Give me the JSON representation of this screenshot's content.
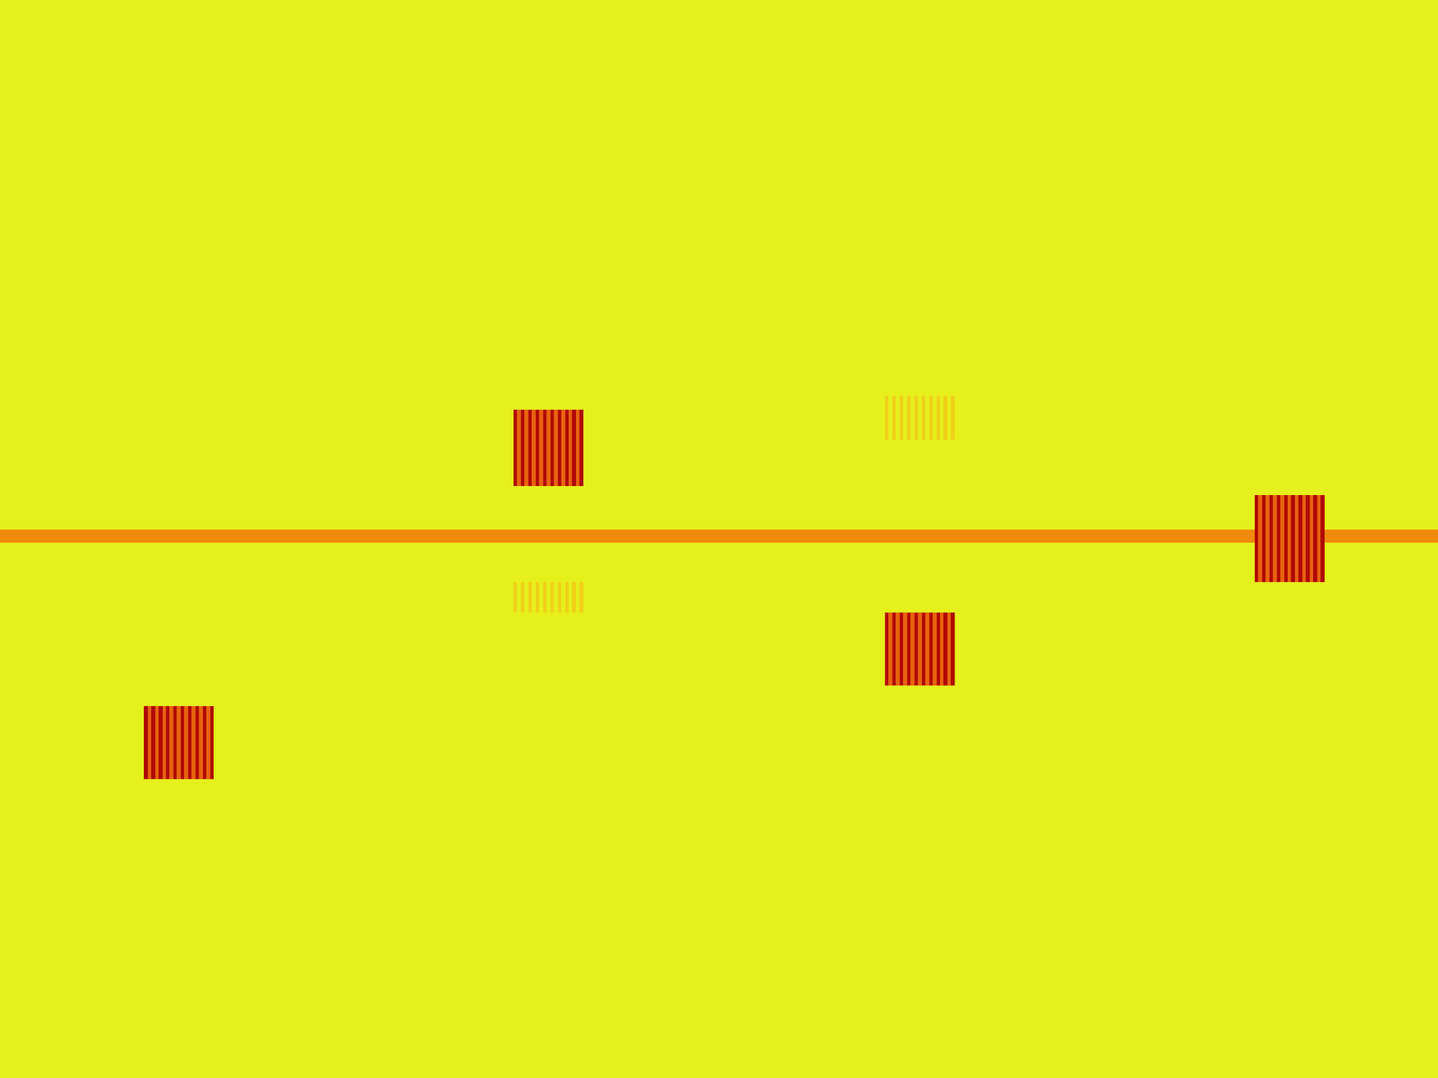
{
  "chart_data": {
    "type": "heatmap",
    "x": [
      0,
      157,
      161,
      165,
      169,
      173,
      177,
      181,
      185,
      189,
      193,
      197,
      201,
      205,
      209,
      213,
      217,
      221,
      225,
      229,
      233,
      560,
      564,
      568,
      572,
      576,
      580,
      584,
      588,
      592,
      596,
      600,
      604,
      608,
      612,
      616,
      620,
      624,
      628,
      632,
      636,
      965,
      969,
      973,
      977,
      981,
      985,
      989,
      993,
      997,
      1001,
      1005,
      1009,
      1013,
      1017,
      1021,
      1025,
      1029,
      1033,
      1037,
      1041,
      1368,
      1372,
      1376,
      1380,
      1384,
      1388,
      1392,
      1396,
      1400,
      1404,
      1408,
      1412,
      1416,
      1420,
      1424,
      1428,
      1432,
      1436,
      1440,
      1444,
      1568
    ],
    "y": [
      0,
      432,
      447,
      480,
      530,
      540,
      578,
      592,
      635,
      668,
      748,
      770,
      850,
      1176
    ],
    "cells": [
      [
        0,
        0,
        0,
        0,
        0,
        0,
        0,
        0,
        0,
        0,
        0,
        0,
        0,
        0,
        0,
        0,
        0,
        0,
        0,
        0,
        0,
        0,
        0,
        0,
        0,
        0,
        0,
        0,
        0,
        0,
        0,
        0,
        0,
        0,
        0,
        0,
        0,
        0,
        0,
        0,
        0,
        0,
        0,
        0,
        0,
        0,
        0,
        0,
        0,
        0,
        0,
        0,
        0,
        0,
        0,
        0,
        0,
        0,
        0,
        0,
        0,
        0,
        0,
        0,
        0,
        0,
        0,
        0,
        0,
        0,
        0,
        0,
        0,
        0,
        0,
        0,
        0,
        0,
        0,
        0,
        0
      ],
      [
        0,
        0,
        0,
        0,
        0,
        0,
        0,
        0,
        0,
        0,
        0,
        0,
        0,
        0,
        0,
        0,
        0,
        0,
        0,
        0,
        0,
        0,
        0,
        0,
        0,
        0,
        0,
        0,
        0,
        0,
        0,
        0,
        0,
        0,
        0,
        0,
        0,
        0,
        0,
        0,
        0,
        0.3,
        0,
        0.3,
        0,
        0.3,
        0,
        0.3,
        0,
        0.3,
        0,
        0.3,
        0,
        0.3,
        0,
        0.3,
        0,
        0.3,
        0,
        0.3,
        0,
        0,
        0,
        0,
        0,
        0,
        0,
        0,
        0,
        0,
        0,
        0,
        0,
        0,
        0,
        0,
        0,
        0,
        0,
        0,
        0
      ],
      [
        0,
        0,
        0,
        0,
        0,
        0,
        0,
        0,
        0,
        0,
        0,
        0,
        0,
        0,
        0,
        0,
        0,
        0,
        0,
        0,
        0,
        1,
        0.6,
        1,
        0.6,
        1,
        0.6,
        1,
        0.6,
        1,
        0.6,
        1,
        0.6,
        1,
        0.6,
        1,
        0.6,
        1,
        0.6,
        1,
        0,
        0.3,
        0,
        0.3,
        0,
        0.3,
        0,
        0.3,
        0,
        0.3,
        0,
        0.3,
        0,
        0.3,
        0,
        0.3,
        0,
        0.3,
        0,
        0.3,
        0,
        0,
        0,
        0,
        0,
        0,
        0,
        0,
        0,
        0,
        0,
        0,
        0,
        0,
        0,
        0,
        0,
        0,
        0,
        0,
        0
      ],
      [
        0,
        0,
        0,
        0,
        0,
        0,
        0,
        0,
        0,
        0,
        0,
        0,
        0,
        0,
        0,
        0,
        0,
        0,
        0,
        0,
        0,
        1,
        0.6,
        1,
        0.6,
        1,
        0.6,
        1,
        0.6,
        1,
        0.6,
        1,
        0.6,
        1,
        0.6,
        1,
        0.6,
        1,
        0.6,
        1,
        0,
        0,
        0,
        0,
        0,
        0,
        0,
        0,
        0,
        0,
        0,
        0,
        0,
        0,
        0,
        0,
        0,
        0,
        0,
        0,
        0,
        0,
        0,
        0,
        0,
        0,
        0,
        0,
        0,
        0,
        0,
        0,
        0,
        0,
        0,
        0,
        0,
        0,
        0,
        0,
        0
      ],
      [
        0,
        0,
        0,
        0,
        0,
        0,
        0,
        0,
        0,
        0,
        0,
        0,
        0,
        0,
        0,
        0,
        0,
        0,
        0,
        0,
        0,
        0,
        0,
        0,
        0,
        0,
        0,
        0,
        0,
        0,
        0,
        0,
        0,
        0,
        0,
        0,
        0,
        0,
        0,
        0,
        0,
        0,
        0,
        0,
        0,
        0,
        0,
        0,
        0,
        0,
        0,
        0,
        0,
        0,
        0,
        0,
        0,
        0,
        0,
        0,
        0,
        0,
        0,
        0,
        0,
        0,
        0,
        0,
        0,
        0,
        0,
        0,
        0,
        0,
        0,
        0,
        0,
        0,
        0,
        0,
        0
      ],
      [
        0,
        0,
        0,
        0,
        0,
        0,
        0,
        0,
        0,
        0,
        0,
        0,
        0,
        0,
        0,
        0,
        0,
        0,
        0,
        0,
        0,
        0,
        0,
        0,
        0,
        0,
        0,
        0,
        0,
        0,
        0,
        0,
        0,
        0,
        0,
        0,
        0,
        0,
        0,
        0,
        0,
        0,
        0,
        0,
        0,
        0,
        0,
        0,
        0,
        0,
        0,
        0,
        0,
        0,
        0,
        0,
        0,
        0,
        0,
        0,
        0,
        1,
        0.6,
        1,
        0.6,
        1,
        0.6,
        1,
        0.6,
        1,
        0.6,
        1,
        0.6,
        1,
        0.6,
        1,
        0.6,
        1,
        0.6,
        1,
        0
      ],
      [
        0.5,
        0.5,
        0.5,
        0.5,
        0.5,
        0.5,
        0.5,
        0.5,
        0.5,
        0.5,
        0.5,
        0.5,
        0.5,
        0.5,
        0.5,
        0.5,
        0.5,
        0.5,
        0.5,
        0.5,
        0.5,
        0.5,
        0.5,
        0.5,
        0.5,
        0.5,
        0.5,
        0.5,
        0.5,
        0.5,
        0.5,
        0.5,
        0.5,
        0.5,
        0.5,
        0.5,
        0.5,
        0.5,
        0.5,
        0.5,
        0.5,
        0.5,
        0.5,
        0.5,
        0.5,
        0.5,
        0.5,
        0.5,
        0.5,
        0.5,
        0.5,
        0.5,
        0.5,
        0.5,
        0.5,
        0.5,
        0.5,
        0.5,
        0.5,
        0.5,
        0.5,
        1,
        0.6,
        1,
        0.6,
        1,
        0.6,
        1,
        0.6,
        1,
        0.6,
        1,
        0.6,
        1,
        0.6,
        1,
        0.6,
        1,
        0.6,
        1,
        0.5
      ],
      [
        0,
        0,
        0,
        0,
        0,
        0,
        0,
        0,
        0,
        0,
        0,
        0,
        0,
        0,
        0,
        0,
        0,
        0,
        0,
        0,
        0,
        0,
        0,
        0,
        0,
        0,
        0,
        0,
        0,
        0,
        0,
        0,
        0,
        0,
        0,
        0,
        0,
        0,
        0,
        0,
        0,
        0,
        0,
        0,
        0,
        0,
        0,
        0,
        0,
        0,
        0,
        0,
        0,
        0,
        0,
        0,
        0,
        0,
        0,
        0,
        0,
        1,
        0.6,
        1,
        0.6,
        1,
        0.6,
        1,
        0.6,
        1,
        0.6,
        1,
        0.6,
        1,
        0.6,
        1,
        0.6,
        1,
        0.6,
        1,
        0
      ],
      [
        0,
        0,
        0,
        0,
        0,
        0,
        0,
        0,
        0,
        0,
        0,
        0,
        0,
        0,
        0,
        0,
        0,
        0,
        0,
        0,
        0,
        0.3,
        0,
        0.3,
        0,
        0.3,
        0,
        0.3,
        0,
        0.3,
        0,
        0.3,
        0,
        0.3,
        0,
        0.3,
        0,
        0.3,
        0,
        0.3,
        0,
        0,
        0,
        0,
        0,
        0,
        0,
        0,
        0,
        0,
        0,
        0,
        0,
        0,
        0,
        0,
        0,
        0,
        0,
        0,
        0,
        0,
        0,
        0,
        0,
        0,
        0,
        0,
        0,
        0,
        0,
        0,
        0,
        0,
        0,
        0,
        0,
        0,
        0,
        0,
        0
      ],
      [
        0,
        0,
        0,
        0,
        0,
        0,
        0,
        0,
        0,
        0,
        0,
        0,
        0,
        0,
        0,
        0,
        0,
        0,
        0,
        0,
        0,
        0,
        0,
        0,
        0,
        0,
        0,
        0,
        0,
        0,
        0,
        0,
        0,
        0,
        0,
        0,
        0,
        0,
        0,
        0,
        0,
        1,
        0.6,
        1,
        0.6,
        1,
        0.6,
        1,
        0.6,
        1,
        0.6,
        1,
        0.6,
        1,
        0.6,
        1,
        0.6,
        1,
        0.6,
        1,
        0,
        0,
        0,
        0,
        0,
        0,
        0,
        0,
        0,
        0,
        0,
        0,
        0,
        0,
        0,
        0,
        0,
        0,
        0,
        0,
        0
      ],
      [
        0,
        0,
        0,
        0,
        0,
        0,
        0,
        0,
        0,
        0,
        0,
        0,
        0,
        0,
        0,
        0,
        0,
        0,
        0,
        0,
        0,
        0,
        0,
        0,
        0,
        0,
        0,
        0,
        0,
        0,
        0,
        0,
        0,
        0,
        0,
        0,
        0,
        0,
        0,
        0,
        0,
        0,
        0,
        0,
        0,
        0,
        0,
        0,
        0,
        0,
        0,
        0,
        0,
        0,
        0,
        0,
        0,
        0,
        0,
        0,
        0,
        0,
        0,
        0,
        0,
        0,
        0,
        0,
        0,
        0,
        0,
        0,
        0,
        0,
        0,
        0,
        0,
        0,
        0,
        0,
        0
      ],
      [
        0,
        1,
        0.6,
        1,
        0.6,
        1,
        0.6,
        1,
        0.6,
        1,
        0.6,
        1,
        0.6,
        1,
        0.6,
        1,
        0.6,
        1,
        0.6,
        1,
        0,
        0,
        0,
        0,
        0,
        0,
        0,
        0,
        0,
        0,
        0,
        0,
        0,
        0,
        0,
        0,
        0,
        0,
        0,
        0,
        0,
        0,
        0,
        0,
        0,
        0,
        0,
        0,
        0,
        0,
        0,
        0,
        0,
        0,
        0,
        0,
        0,
        0,
        0,
        0,
        0,
        0,
        0,
        0,
        0,
        0,
        0,
        0,
        0,
        0,
        0,
        0,
        0,
        0,
        0,
        0,
        0,
        0,
        0,
        0,
        0
      ],
      [
        0,
        0,
        0,
        0,
        0,
        0,
        0,
        0,
        0,
        0,
        0,
        0,
        0,
        0,
        0,
        0,
        0,
        0,
        0,
        0,
        0,
        0,
        0,
        0,
        0,
        0,
        0,
        0,
        0,
        0,
        0,
        0,
        0,
        0,
        0,
        0,
        0,
        0,
        0,
        0,
        0,
        0,
        0,
        0,
        0,
        0,
        0,
        0,
        0,
        0,
        0,
        0,
        0,
        0,
        0,
        0,
        0,
        0,
        0,
        0,
        0,
        0,
        0,
        0,
        0,
        0,
        0,
        0,
        0,
        0,
        0,
        0,
        0,
        0,
        0,
        0,
        0,
        0,
        0,
        0,
        0
      ]
    ],
    "zlim": [
      0,
      1
    ],
    "xlim": [
      0,
      1568
    ],
    "ylim": [
      1176,
      0
    ],
    "tick_labels": false,
    "grid": false
  }
}
